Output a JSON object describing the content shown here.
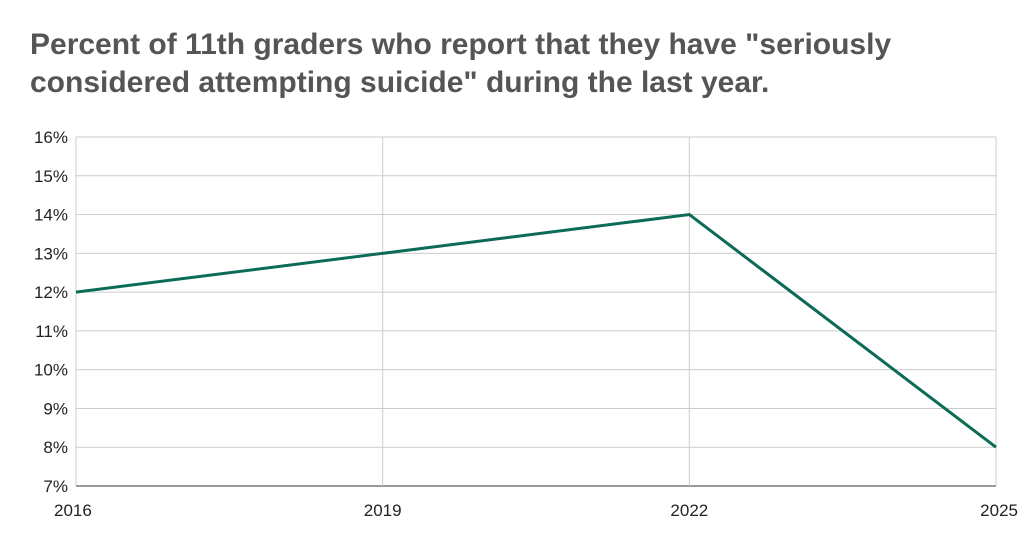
{
  "chart_data": {
    "type": "line",
    "title_lines": [
      "Percent of 11th graders who report that they have \"seriously",
      "considered attempting suicide\" during the last year."
    ],
    "x": [
      "2016",
      "2019",
      "2022",
      "2025"
    ],
    "series": [
      {
        "values": [
          12,
          13,
          14,
          8
        ]
      }
    ],
    "ylim": [
      7,
      16
    ],
    "yticks": [
      "7%",
      "8%",
      "9%",
      "10%",
      "11%",
      "12%",
      "13%",
      "14%",
      "15%",
      "16%"
    ],
    "grid": true,
    "legend": "none",
    "line_color": "#0b6b57",
    "grid_color": "#cccccc"
  }
}
